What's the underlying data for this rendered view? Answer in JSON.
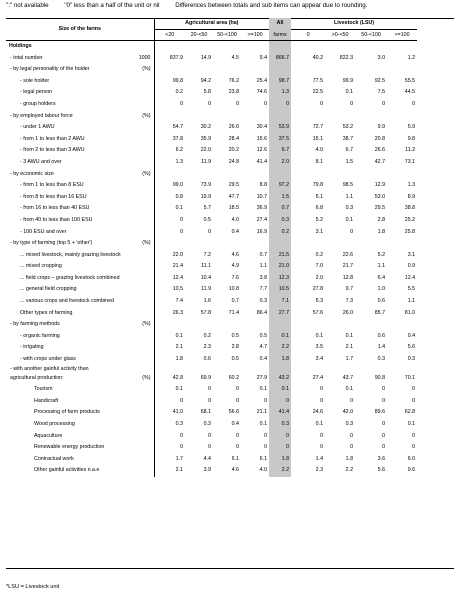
{
  "top_notes": {
    "not_available": "\":\" not available",
    "zero": "\"0\" less than a half of the unit or nil",
    "rounding": "Differences between totals and sub items can appear due to rounding."
  },
  "header": {
    "size_label": "Size of the farms",
    "agri_label": "Agricultural area (ha)",
    "all_label_1": "All",
    "all_label_2": "farms",
    "livestock_label": "Livestock (LSU)",
    "agri_cols": [
      "<20",
      "20-<50",
      "50-<100",
      ">=100"
    ],
    "live_cols": [
      "0",
      ">0-<50",
      "50-<100",
      ">=100"
    ]
  },
  "rows": [
    {
      "type": "section",
      "label": "Holdings"
    },
    {
      "type": "row",
      "indent": 1,
      "label": "- total number",
      "unit": "1000",
      "a": [
        "837.9",
        "14.9",
        "4.5",
        "9.4"
      ],
      "all": "866.7",
      "l": [
        "40.2",
        "822.3",
        "3.0",
        "1.2"
      ]
    },
    {
      "type": "group",
      "indent": 1,
      "label": "- by legal personality of the holder",
      "unit": "(%)"
    },
    {
      "type": "row",
      "indent": 2,
      "label": "- sole holder",
      "unit": "",
      "a": [
        "99.8",
        "94.2",
        "76.2",
        "25.4"
      ],
      "all": "98.7",
      "l": [
        "77.5",
        "99.9",
        "92.5",
        "55.5"
      ]
    },
    {
      "type": "row",
      "indent": 2,
      "label": "- legal person",
      "unit": "",
      "a": [
        "0.2",
        "5.8",
        "23.8",
        "74.6"
      ],
      "all": "1.3",
      "l": [
        "22.5",
        "0.1",
        "7.5",
        "44.5"
      ]
    },
    {
      "type": "row",
      "indent": 2,
      "label": "- group holders",
      "unit": "",
      "a": [
        "0",
        "0",
        "0",
        "0"
      ],
      "all": "0",
      "l": [
        "0",
        "0",
        "0",
        "0"
      ]
    },
    {
      "type": "group",
      "indent": 1,
      "label": "- by employed labour force",
      "unit": "(%)"
    },
    {
      "type": "row",
      "indent": 2,
      "label": "- under 1 AWU",
      "unit": "",
      "a": [
        "54.7",
        "30.2",
        "26.6",
        "30.4"
      ],
      "all": "53.9",
      "l": [
        "72.7",
        "53.2",
        "9.9",
        "5.9"
      ]
    },
    {
      "type": "row",
      "indent": 2,
      "label": "- from 1 to less than 2 AWU",
      "unit": "",
      "a": [
        "37.8",
        "35.9",
        "28.4",
        "15.6"
      ],
      "all": "37.5",
      "l": [
        "15.1",
        "38.7",
        "20.8",
        "9.8"
      ]
    },
    {
      "type": "row",
      "indent": 2,
      "label": "- from 2 to less than 3 AWU",
      "unit": "",
      "a": [
        "6.2",
        "22.0",
        "20.2",
        "12.6"
      ],
      "all": "6.7",
      "l": [
        "4.0",
        "6.7",
        "26.6",
        "11.2"
      ]
    },
    {
      "type": "row",
      "indent": 2,
      "label": "- 3 AWU and over",
      "unit": "",
      "a": [
        "1.3",
        "11.9",
        "24.8",
        "41.4"
      ],
      "all": "2.0",
      "l": [
        "8.1",
        "1.5",
        "42.7",
        "73.1"
      ]
    },
    {
      "type": "group",
      "indent": 1,
      "label": "- by economic size",
      "unit": "(%)"
    },
    {
      "type": "row",
      "indent": 2,
      "label": "- from 1 to less than 8 ESU",
      "unit": "",
      "a": [
        "99.0",
        "73.9",
        "29.5",
        "8.8"
      ],
      "all": "97.2",
      "l": [
        "79.8",
        "98.5",
        "12.9",
        "1.3"
      ]
    },
    {
      "type": "row",
      "indent": 2,
      "label": "- from 8 to less than 16 ESU",
      "unit": "",
      "a": [
        "0.8",
        "19.9",
        "47.7",
        "10.7"
      ],
      "all": "1.5",
      "l": [
        "5.1",
        "1.1",
        "53.0",
        "8.9"
      ]
    },
    {
      "type": "row",
      "indent": 2,
      "label": "- from 16 to less than 40 ESU",
      "unit": "",
      "a": [
        "0.1",
        "5.7",
        "18.5",
        "36.9"
      ],
      "all": "0.7",
      "l": [
        "6.8",
        "0.3",
        "29.5",
        "38.8"
      ]
    },
    {
      "type": "row",
      "indent": 2,
      "label": "- from 40 to less than 100 ESU",
      "unit": "",
      "a": [
        "0",
        "0.5",
        "4.0",
        "27.4"
      ],
      "all": "0.3",
      "l": [
        "5.2",
        "0.1",
        "2.8",
        "25.2"
      ]
    },
    {
      "type": "row",
      "indent": 2,
      "label": "- 100 ESU and over",
      "unit": "",
      "a": [
        "0",
        "0",
        "0.4",
        "16.9"
      ],
      "all": "0.2",
      "l": [
        "3.1",
        "0",
        "1.8",
        "25.8"
      ]
    },
    {
      "type": "group",
      "indent": 1,
      "label": "- by type of farming (top 5 + 'other')",
      "unit": "(%)"
    },
    {
      "type": "row",
      "indent": 2,
      "label": "... mixed livestock, mainly grazing livestock",
      "unit": "",
      "a": [
        "22.0",
        "7.2",
        "4.6",
        "0.7"
      ],
      "all": "21.5",
      "l": [
        "0.2",
        "22.6",
        "5.2",
        "3.1"
      ]
    },
    {
      "type": "row",
      "indent": 2,
      "label": "... mixed cropping",
      "unit": "",
      "a": [
        "21.4",
        "11.1",
        "4.9",
        "1.1"
      ],
      "all": "21.0",
      "l": [
        "7.0",
        "21.7",
        "1.1",
        "0.9"
      ]
    },
    {
      "type": "row",
      "indent": 2,
      "label": "... field crops – grazing livestock combined",
      "unit": "",
      "a": [
        "12.4",
        "10.4",
        "7.6",
        "3.8"
      ],
      "all": "12.3",
      "l": [
        "2.0",
        "12.8",
        "6.4",
        "12.4"
      ]
    },
    {
      "type": "row",
      "indent": 2,
      "label": "... general field cropping",
      "unit": "",
      "a": [
        "10.5",
        "11.9",
        "10.8",
        "7.7"
      ],
      "all": "10.5",
      "l": [
        "27.8",
        "9.7",
        "1.0",
        "5.5"
      ]
    },
    {
      "type": "row",
      "indent": 2,
      "label": "... various crops and livestock combined",
      "unit": "",
      "a": [
        "7.4",
        "1.6",
        "0.7",
        "0.3"
      ],
      "all": "7.1",
      "l": [
        "5.3",
        "7.3",
        "0.6",
        "1.1"
      ]
    },
    {
      "type": "row",
      "indent": 2,
      "label": "Other types of farming",
      "unit": "",
      "a": [
        "26.3",
        "57.8",
        "71.4",
        "86.4"
      ],
      "all": "27.7",
      "l": [
        "57.6",
        "26.0",
        "85.7",
        "81.0"
      ]
    },
    {
      "type": "group",
      "indent": 1,
      "label": "- by farming methods",
      "unit": "(%)"
    },
    {
      "type": "row",
      "indent": 2,
      "label": "- organic farming",
      "unit": "",
      "a": [
        "0.1",
        "0.2",
        "0.5",
        "0.5"
      ],
      "all": "0.1",
      "l": [
        "0.1",
        "0.1",
        "0.6",
        "0.4"
      ]
    },
    {
      "type": "row",
      "indent": 2,
      "label": "- irrigating",
      "unit": "",
      "a": [
        "2.1",
        "2.3",
        "2.8",
        "4.7"
      ],
      "all": "2.2",
      "l": [
        "3.5",
        "2.1",
        "1.4",
        "5.6"
      ]
    },
    {
      "type": "row",
      "indent": 2,
      "label": "- with crops under glass",
      "unit": "",
      "a": [
        "1.8",
        "0.6",
        "0.5",
        "0.4"
      ],
      "all": "1.8",
      "l": [
        "3.4",
        "1.7",
        "0.3",
        "0.3"
      ]
    },
    {
      "type": "row2",
      "indent": 1,
      "label": "- with another gainful activity than",
      "label2": "agricultural production:",
      "unit": "(%)",
      "a": [
        "42.8",
        "69.9",
        "60.2",
        "27.9"
      ],
      "all": "43.2",
      "l": [
        "27.4",
        "43.7",
        "90.8",
        "70.1"
      ]
    },
    {
      "type": "row",
      "indent": 3,
      "label": "Tourism",
      "unit": "",
      "a": [
        "0.1",
        "0",
        "0",
        "0.1"
      ],
      "all": "0.1",
      "l": [
        "0",
        "0.1",
        "0",
        "0"
      ]
    },
    {
      "type": "row",
      "indent": 3,
      "label": "Handicraft",
      "unit": "",
      "a": [
        "0",
        "0",
        "0",
        "0"
      ],
      "all": "0",
      "l": [
        "0",
        "0",
        "0",
        "0"
      ]
    },
    {
      "type": "row",
      "indent": 3,
      "label": "Processing of farm products",
      "unit": "",
      "a": [
        "41.0",
        "68.1",
        "56.6",
        "21.1"
      ],
      "all": "41.4",
      "l": [
        "24.6",
        "42.0",
        "89.6",
        "62.8"
      ]
    },
    {
      "type": "row",
      "indent": 3,
      "label": "Wood processing",
      "unit": "",
      "a": [
        "0.3",
        "0.3",
        "0.4",
        "0.1"
      ],
      "all": "0.3",
      "l": [
        "0.1",
        "0.3",
        "0",
        "0.1"
      ]
    },
    {
      "type": "row",
      "indent": 3,
      "label": "Aquaculture",
      "unit": "",
      "a": [
        "0",
        "0",
        "0",
        "0"
      ],
      "all": "0",
      "l": [
        "0",
        "0",
        "0",
        "0"
      ]
    },
    {
      "type": "row",
      "indent": 3,
      "label": "Renewable energy production",
      "unit": "",
      "a": [
        "0",
        "0",
        "0",
        "0"
      ],
      "all": "0",
      "l": [
        "0",
        "0",
        "0",
        "0"
      ]
    },
    {
      "type": "row",
      "indent": 3,
      "label": "Contractual work",
      "unit": "",
      "a": [
        "1.7",
        "4.4",
        "6.1",
        "6.1"
      ],
      "all": "1.8",
      "l": [
        "1.4",
        "1.8",
        "3.6",
        "6.0"
      ]
    },
    {
      "type": "row",
      "indent": 3,
      "label": "Other gainful activities n.a.e",
      "unit": "",
      "a": [
        "2.1",
        "3.9",
        "4.6",
        "4.0"
      ],
      "all": "2.2",
      "l": [
        "2.3",
        "2.2",
        "5.6",
        "9.6"
      ]
    }
  ],
  "footnote": "*LSU = Livestock unit"
}
